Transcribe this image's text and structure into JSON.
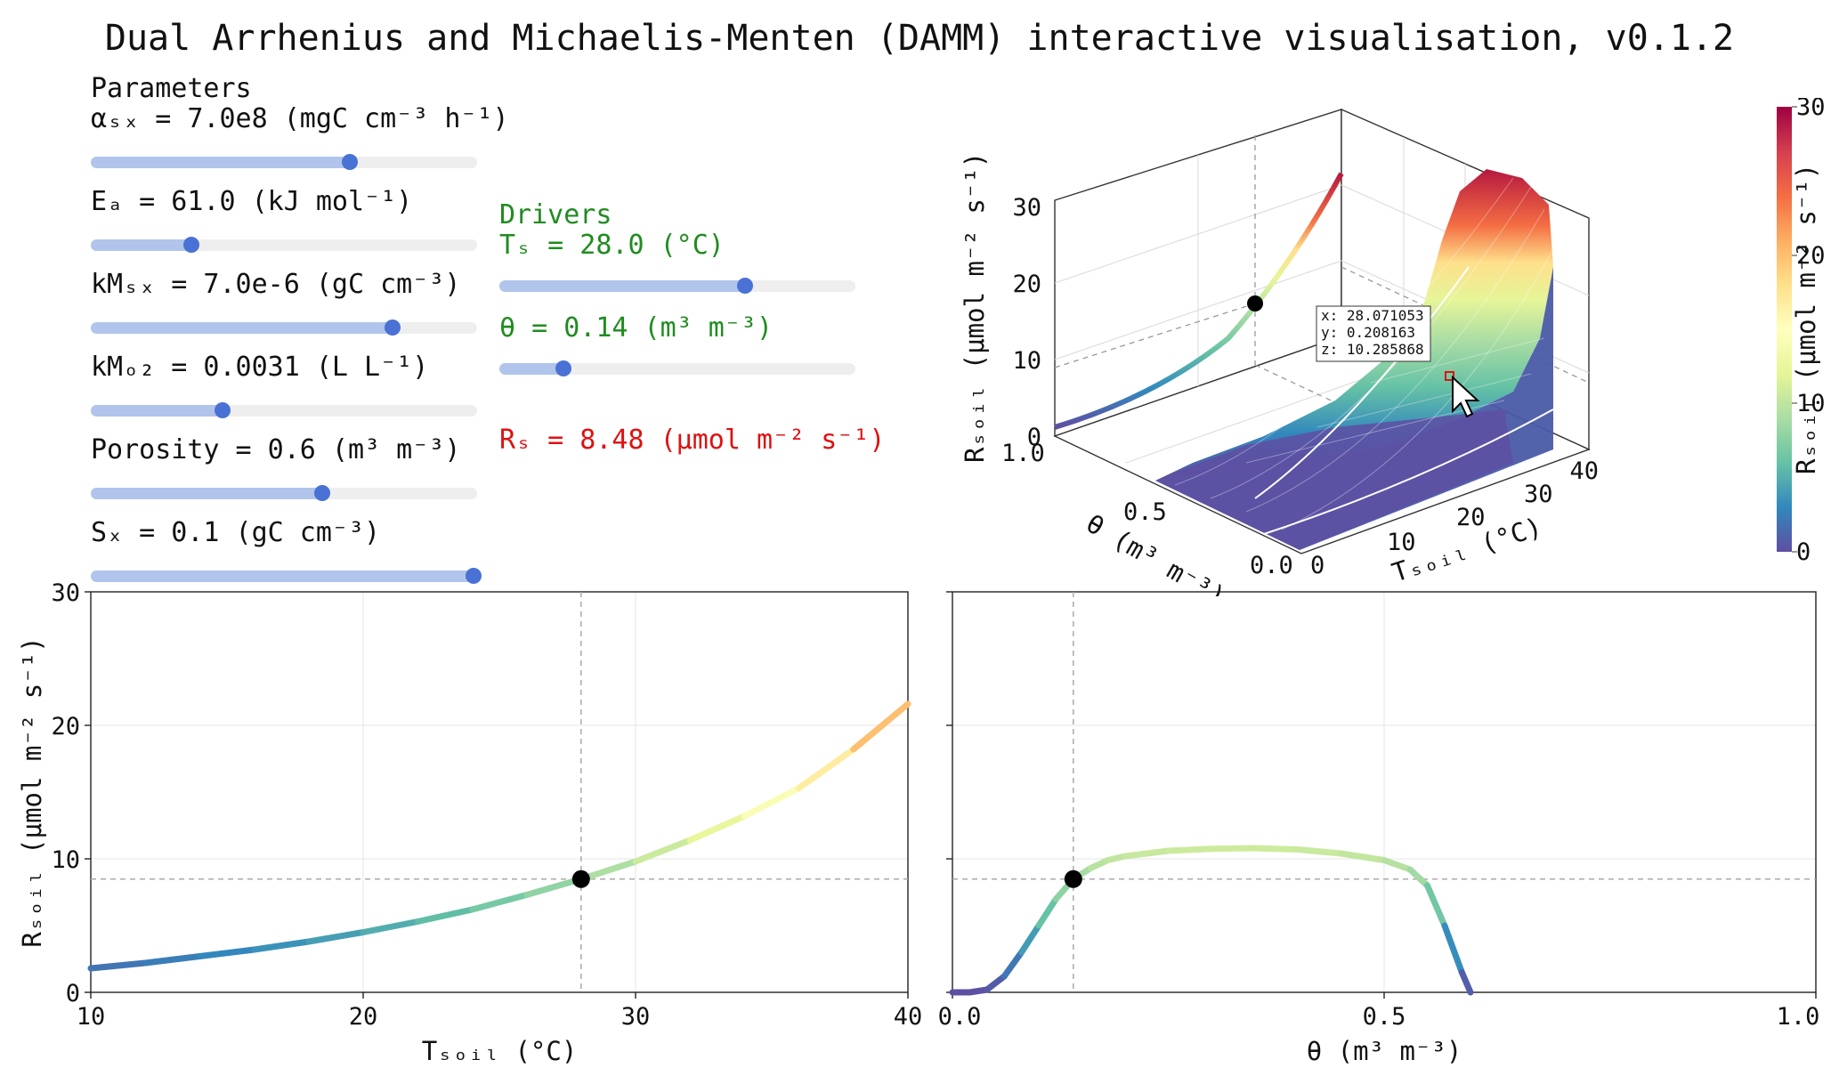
{
  "title": "Dual Arrhenius and Michaelis-Menten (DAMM) interactive visualisation, v0.1.2",
  "parameters": {
    "heading": "Parameters",
    "items": [
      {
        "label": "αₛₓ = 7.0e8 (mgC cm⁻³ h⁻¹)",
        "value": 700000000.0,
        "position": 0.67
      },
      {
        "label": "Eₐ = 61.0 (kJ mol⁻¹)",
        "value": 61.0,
        "position": 0.26
      },
      {
        "label": "kMₛₓ = 7.0e-6 (gC cm⁻³)",
        "value": 7e-06,
        "position": 0.78
      },
      {
        "label": "kMₒ₂ = 0.0031 (L L⁻¹)",
        "value": 0.0031,
        "position": 0.34
      },
      {
        "label": "Porosity = 0.6 (m³ m⁻³)",
        "value": 0.6,
        "position": 0.6
      },
      {
        "label": "Sₓ = 0.1 (gC cm⁻³)",
        "value": 0.1,
        "position": 0.99
      }
    ]
  },
  "drivers": {
    "heading": "Drivers",
    "items": [
      {
        "label": "Tₛ = 28.0 (°C)",
        "value": 28.0,
        "position": 0.69
      },
      {
        "label": "θ = 0.14 (m³ m⁻³)",
        "value": 0.14,
        "position": 0.18
      }
    ],
    "result": "Rₛ = 8.48 (μmol m⁻² s⁻¹)"
  },
  "colors": {
    "accent_slider_fill": "#b0c4ec",
    "accent_slider_knob": "#4a72d4",
    "drivers_text": "#1f8c1f",
    "result_text": "#e01010"
  },
  "surface_plot": {
    "zlabel": "Rₛₒᵢₗ (μmol m⁻² s⁻¹)",
    "xlabel": "Tₛₒᵢₗ (°C)",
    "ylabel": "θ (m³ m⁻³)",
    "z_ticks": [
      "0",
      "10",
      "20",
      "30"
    ],
    "x_ticks": [
      "0",
      "10",
      "20",
      "30",
      "40"
    ],
    "y_ticks": [
      "0.0",
      "0.5",
      "1.0"
    ],
    "tooltip": [
      "x: 28.071053",
      "y: 0.208163",
      "z: 10.285868"
    ]
  },
  "colorbar": {
    "label": "Rₛₒᵢₗ (μmol m⁻² s⁻¹)",
    "ticks": [
      "0",
      "10",
      "20",
      "30"
    ],
    "colormap": "Spectral_r"
  },
  "chart_data": [
    {
      "type": "line",
      "xlabel": "Tₛₒᵢₗ (°C)",
      "ylabel": "Rₛₒᵢₗ (μmol m⁻² s⁻¹)",
      "xlim": [
        10,
        40
      ],
      "ylim": [
        0,
        30
      ],
      "x_ticks": [
        "10",
        "20",
        "30",
        "40"
      ],
      "y_ticks": [
        "0",
        "10",
        "20",
        "30"
      ],
      "x": [
        10,
        12,
        14,
        16,
        18,
        20,
        22,
        24,
        26,
        28,
        30,
        32,
        34,
        36,
        38,
        40
      ],
      "y": [
        1.8,
        2.2,
        2.7,
        3.2,
        3.8,
        4.5,
        5.3,
        6.2,
        7.3,
        8.48,
        9.8,
        11.4,
        13.2,
        15.3,
        18.2,
        21.6
      ],
      "marker": {
        "x": 28.0,
        "y": 8.48
      },
      "grid": true,
      "colormap": "Spectral_r"
    },
    {
      "type": "line",
      "xlabel": "θ (m³ m⁻³)",
      "xlim": [
        0.0,
        1.0
      ],
      "ylim": [
        0,
        30
      ],
      "x_ticks": [
        "0.0",
        "0.5",
        "1.0"
      ],
      "x": [
        0.0,
        0.02,
        0.04,
        0.06,
        0.08,
        0.1,
        0.12,
        0.14,
        0.16,
        0.18,
        0.2,
        0.25,
        0.3,
        0.35,
        0.4,
        0.45,
        0.5,
        0.53,
        0.55,
        0.57,
        0.59,
        0.6
      ],
      "y": [
        0.0,
        0.0,
        0.2,
        1.2,
        3.0,
        5.0,
        7.0,
        8.48,
        9.3,
        9.9,
        10.2,
        10.6,
        10.75,
        10.8,
        10.7,
        10.4,
        9.9,
        9.2,
        8.0,
        5.0,
        1.5,
        0.0
      ],
      "marker": {
        "x": 0.14,
        "y": 8.48
      },
      "grid": true,
      "colormap": "Spectral_r"
    }
  ]
}
